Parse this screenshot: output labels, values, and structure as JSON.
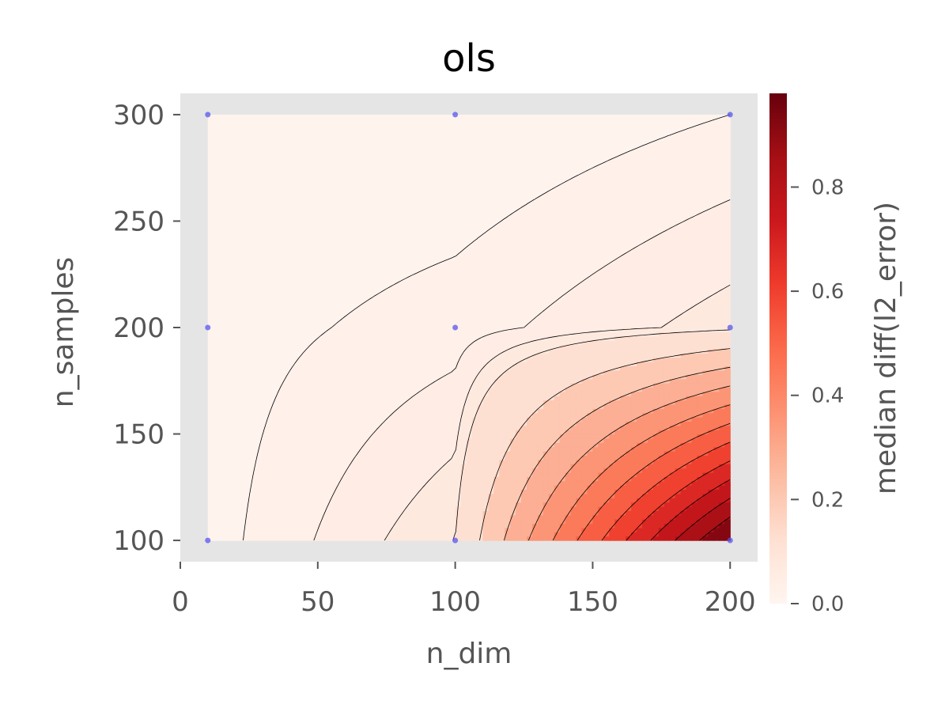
{
  "chart_data": {
    "type": "contour",
    "title": "ols",
    "xlabel": "n_dim",
    "ylabel": "n_samples",
    "xlim": [
      0,
      210
    ],
    "ylim": [
      90,
      310
    ],
    "xticks": [
      0,
      50,
      100,
      150,
      200
    ],
    "yticks": [
      100,
      150,
      200,
      250,
      300
    ],
    "sample_points": [
      {
        "x": 10,
        "y": 300
      },
      {
        "x": 100,
        "y": 300
      },
      {
        "x": 200,
        "y": 300
      },
      {
        "x": 10,
        "y": 200
      },
      {
        "x": 100,
        "y": 200
      },
      {
        "x": 200,
        "y": 200
      },
      {
        "x": 10,
        "y": 100
      },
      {
        "x": 100,
        "y": 100
      },
      {
        "x": 200,
        "y": 100
      }
    ],
    "grid_x": [
      10,
      100,
      200
    ],
    "grid_y": [
      100,
      200,
      300
    ],
    "z_rows": [
      [
        0.01,
        0.08,
        0.98
      ],
      [
        0.01,
        0.03,
        0.07
      ],
      [
        0.0,
        0.0,
        0.02
      ]
    ],
    "contour_levels": [
      0.0,
      0.02,
      0.04,
      0.06,
      0.08,
      0.16,
      0.24,
      0.32,
      0.4,
      0.48,
      0.56,
      0.64,
      0.72,
      0.8,
      0.88,
      0.96
    ],
    "colormap": "Reds",
    "colorbar": {
      "label": "median diff(l2_error)",
      "range": [
        0,
        0.98
      ],
      "ticks": [
        "0.0",
        "0.2",
        "0.4",
        "0.6",
        "0.8"
      ],
      "tick_values": [
        0.0,
        0.2,
        0.4,
        0.6,
        0.8
      ]
    },
    "axes_background": "#e5e5e5",
    "point_color": "#5555ee",
    "grid": false
  }
}
